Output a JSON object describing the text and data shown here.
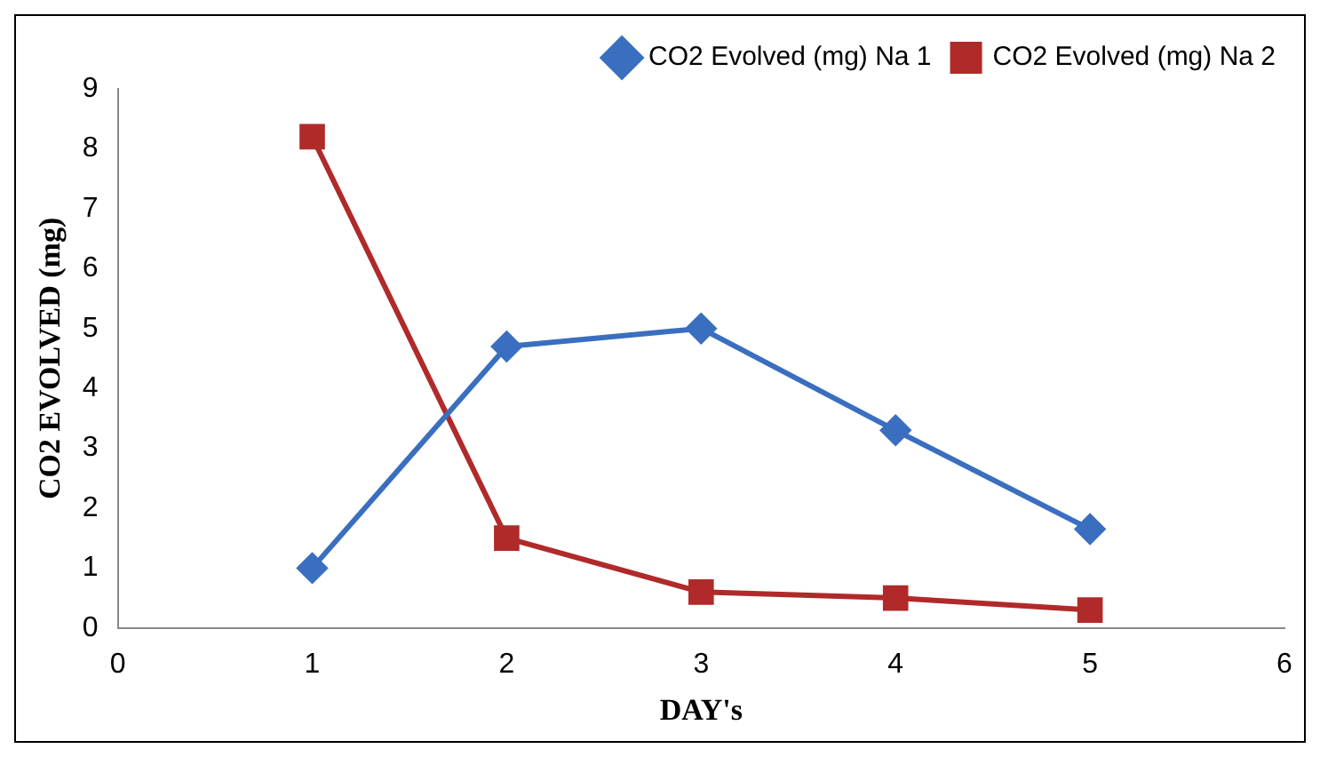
{
  "chart_data": {
    "type": "line",
    "xlabel": "DAY's",
    "ylabel": "CO2 EVOLVED (mg)",
    "x": [
      1,
      2,
      3,
      4,
      5
    ],
    "series": [
      {
        "name": "CO2 Evolved (mg) Na 1",
        "color": "#3a6fc0",
        "values": [
          1.0,
          4.7,
          5.0,
          3.3,
          1.65
        ],
        "marker": "diamond"
      },
      {
        "name": "CO2 Evolved (mg) Na 2",
        "color": "#b02a2a",
        "values": [
          8.2,
          1.5,
          0.6,
          0.5,
          0.3
        ],
        "marker": "square"
      }
    ],
    "xlim": [
      0,
      6
    ],
    "xticks": [
      0,
      1,
      2,
      3,
      4,
      5,
      6
    ],
    "ylim": [
      0,
      9
    ],
    "yticks": [
      0,
      1,
      2,
      3,
      4,
      5,
      6,
      7,
      8,
      9
    ],
    "grid": false,
    "legend": "top right",
    "line_style": "solid"
  }
}
